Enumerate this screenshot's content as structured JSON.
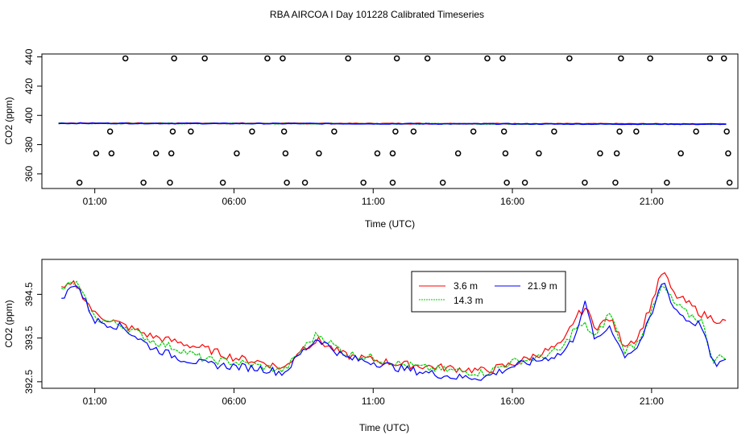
{
  "figure": {
    "title": "RBA AIRCOA I  Day 101228  Calibrated Timeseries"
  },
  "chart_data": [
    {
      "type": "scatter",
      "ylabel": "CO2 (ppm)",
      "xlabel": "Time (UTC)",
      "xlim": [
        -0.9,
        24.1
      ],
      "ylim": [
        350,
        442
      ],
      "x_ticks": [
        {
          "v": 1,
          "label": "01:00"
        },
        {
          "v": 6,
          "label": "06:00"
        },
        {
          "v": 11,
          "label": "11:00"
        },
        {
          "v": 16,
          "label": "16:00"
        },
        {
          "v": 21,
          "label": "21:00"
        }
      ],
      "y_ticks": [
        {
          "v": 360,
          "label": "360"
        },
        {
          "v": 380,
          "label": "380"
        },
        {
          "v": 400,
          "label": "400"
        },
        {
          "v": 420,
          "label": "420"
        },
        {
          "v": 440,
          "label": "440"
        }
      ],
      "markers": [
        [
          0.45,
          354
        ],
        [
          1.05,
          374
        ],
        [
          1.55,
          389
        ],
        [
          1.6,
          374
        ],
        [
          2.1,
          439
        ],
        [
          2.75,
          354
        ],
        [
          3.2,
          374
        ],
        [
          3.75,
          374
        ],
        [
          3.7,
          354
        ],
        [
          3.8,
          389
        ],
        [
          3.85,
          439
        ],
        [
          4.45,
          389
        ],
        [
          4.95,
          439
        ],
        [
          5.6,
          354
        ],
        [
          6.1,
          374
        ],
        [
          6.65,
          389
        ],
        [
          7.2,
          439
        ],
        [
          7.75,
          439
        ],
        [
          7.8,
          389
        ],
        [
          7.85,
          374
        ],
        [
          7.9,
          354
        ],
        [
          8.55,
          354
        ],
        [
          9.05,
          374
        ],
        [
          9.6,
          389
        ],
        [
          10.1,
          439
        ],
        [
          10.65,
          354
        ],
        [
          11.15,
          374
        ],
        [
          11.7,
          374
        ],
        [
          11.7,
          354
        ],
        [
          11.8,
          389
        ],
        [
          11.85,
          439
        ],
        [
          12.45,
          389
        ],
        [
          12.95,
          439
        ],
        [
          13.5,
          354
        ],
        [
          14.05,
          374
        ],
        [
          14.6,
          389
        ],
        [
          15.1,
          439
        ],
        [
          15.65,
          439
        ],
        [
          15.7,
          389
        ],
        [
          15.75,
          374
        ],
        [
          15.8,
          354
        ],
        [
          16.45,
          354
        ],
        [
          16.95,
          374
        ],
        [
          17.5,
          389
        ],
        [
          18.05,
          439
        ],
        [
          18.6,
          354
        ],
        [
          19.15,
          374
        ],
        [
          19.75,
          374
        ],
        [
          19.7,
          354
        ],
        [
          19.85,
          389
        ],
        [
          19.9,
          439
        ],
        [
          20.45,
          389
        ],
        [
          20.95,
          439
        ],
        [
          21.55,
          354
        ],
        [
          22.05,
          374
        ],
        [
          22.6,
          389
        ],
        [
          23.1,
          439
        ],
        [
          23.6,
          439
        ],
        [
          23.7,
          389
        ],
        [
          23.75,
          374
        ],
        [
          23.8,
          354
        ]
      ],
      "series": [
        {
          "name": "3.6 m",
          "color": "#ff0000",
          "x": [
            -0.3,
            23.7
          ],
          "values": [
            394.7,
            394.1
          ]
        },
        {
          "name": "14.3 m",
          "color": "#00cc00",
          "x": [
            -0.3,
            23.7
          ],
          "values": [
            394.6,
            394.0
          ]
        },
        {
          "name": "21.9 m",
          "color": "#0000ff",
          "x": [
            -0.3,
            23.7
          ],
          "values": [
            394.6,
            394.0
          ]
        }
      ]
    },
    {
      "type": "line",
      "ylabel": "CO2 (ppm)",
      "xlabel": "Time (UTC)",
      "xlim": [
        -0.9,
        24.1
      ],
      "ylim": [
        392.35,
        395.3
      ],
      "x_ticks": [
        {
          "v": 1,
          "label": "01:00"
        },
        {
          "v": 6,
          "label": "06:00"
        },
        {
          "v": 11,
          "label": "11:00"
        },
        {
          "v": 16,
          "label": "16:00"
        },
        {
          "v": 21,
          "label": "21:00"
        }
      ],
      "y_ticks": [
        {
          "v": 392.5,
          "label": "392.5"
        },
        {
          "v": 393.5,
          "label": "393.5"
        },
        {
          "v": 394.5,
          "label": "394.5"
        }
      ],
      "legend": {
        "placement": "top-right"
      },
      "series": [
        {
          "name": "3.6 m",
          "color": "#ff0000",
          "x": [
            -0.2,
            0.3,
            1.0,
            2.0,
            3.0,
            4.0,
            5.0,
            6.0,
            7.0,
            7.8,
            8.4,
            9.0,
            10.0,
            11.0,
            12.0,
            13.0,
            14.0,
            15.0,
            16.0,
            17.0,
            17.8,
            18.2,
            18.6,
            19.0,
            19.5,
            20.0,
            20.5,
            21.0,
            21.4,
            21.8,
            22.3,
            22.8,
            23.2,
            23.7
          ],
          "values": [
            394.6,
            394.75,
            394.05,
            393.8,
            393.55,
            393.4,
            393.25,
            393.05,
            392.95,
            392.8,
            393.25,
            393.45,
            393.1,
            393.0,
            392.9,
            392.85,
            392.8,
            392.75,
            392.9,
            393.15,
            393.35,
            393.9,
            394.2,
            393.75,
            393.95,
            393.35,
            393.5,
            394.3,
            395.05,
            394.5,
            394.3,
            394.05,
            393.95,
            393.85
          ]
        },
        {
          "name": "14.3 m",
          "color": "#00cc00",
          "x": [
            -0.2,
            0.3,
            1.0,
            2.0,
            3.0,
            4.0,
            5.0,
            6.0,
            7.0,
            7.8,
            8.4,
            9.0,
            10.0,
            11.0,
            12.0,
            13.0,
            14.0,
            15.0,
            16.0,
            17.0,
            17.8,
            18.2,
            18.6,
            19.0,
            19.5,
            20.0,
            20.5,
            21.0,
            21.4,
            21.8,
            22.3,
            22.8,
            23.2,
            23.7
          ],
          "values": [
            394.6,
            394.8,
            393.95,
            393.8,
            393.45,
            393.25,
            393.0,
            392.95,
            392.85,
            392.75,
            393.2,
            393.6,
            393.15,
            393.05,
            392.9,
            392.8,
            392.75,
            392.7,
            392.95,
            393.05,
            393.25,
            393.7,
            393.8,
            393.5,
            394.1,
            393.2,
            393.4,
            394.1,
            394.7,
            394.3,
            394.05,
            393.9,
            393.0,
            393.1
          ]
        },
        {
          "name": "21.9 m",
          "color": "#0000ff",
          "x": [
            -0.2,
            0.3,
            1.0,
            2.0,
            3.0,
            4.0,
            5.0,
            6.0,
            7.0,
            7.8,
            8.4,
            9.0,
            10.0,
            11.0,
            12.0,
            13.0,
            14.0,
            15.0,
            16.0,
            17.0,
            17.8,
            18.2,
            18.6,
            19.0,
            19.5,
            20.0,
            20.5,
            21.0,
            21.4,
            21.8,
            22.3,
            22.8,
            23.2,
            23.7
          ],
          "values": [
            394.35,
            394.8,
            393.9,
            393.75,
            393.3,
            393.05,
            392.9,
            392.85,
            392.8,
            392.7,
            393.15,
            393.5,
            393.05,
            392.95,
            392.8,
            392.7,
            392.6,
            392.6,
            392.85,
            393.0,
            393.15,
            393.5,
            394.3,
            393.4,
            393.8,
            393.1,
            393.3,
            394.0,
            394.85,
            394.2,
            393.9,
            393.8,
            392.9,
            392.95
          ]
        }
      ]
    }
  ]
}
